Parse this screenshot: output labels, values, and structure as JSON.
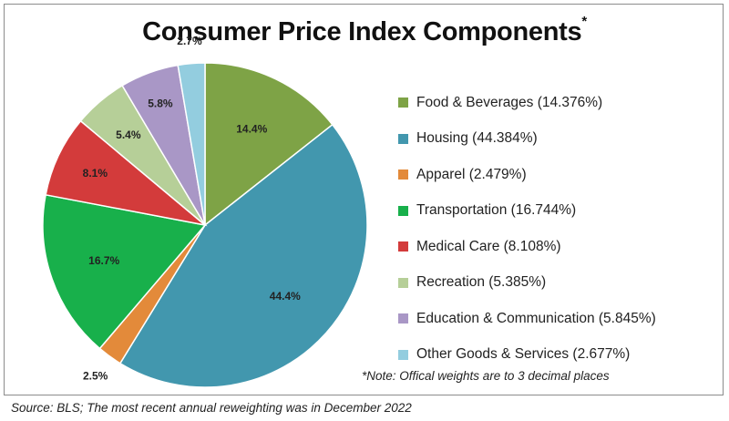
{
  "chart_data": {
    "type": "pie",
    "title": "Consumer Price Index Components",
    "title_marker": "*",
    "slices": [
      {
        "name": "Food & Beverages",
        "legend": "Food & Beverages (14.376%)",
        "value": 14.376,
        "label": "14.4%",
        "color": "#7ea346"
      },
      {
        "name": "Housing",
        "legend": "Housing (44.384%)",
        "value": 44.384,
        "label": "44.4%",
        "color": "#4297ae"
      },
      {
        "name": "Apparel",
        "legend": "Apparel (2.479%)",
        "value": 2.479,
        "label": "2.5%",
        "color": "#e38a3a"
      },
      {
        "name": "Transportation",
        "legend": "Transportation (16.744%)",
        "value": 16.744,
        "label": "16.7%",
        "color": "#18b04b"
      },
      {
        "name": "Medical Care",
        "legend": "Medical Care (8.108%)",
        "value": 8.108,
        "label": "8.1%",
        "color": "#d33b3b"
      },
      {
        "name": "Recreation",
        "legend": "Recreation (5.385%)",
        "value": 5.385,
        "label": "5.4%",
        "color": "#b6cf98"
      },
      {
        "name": "Education & Communication",
        "legend": "Education & Communication (5.845%)",
        "value": 5.845,
        "label": "5.8%",
        "color": "#a997c6"
      },
      {
        "name": "Other Goods & Services",
        "legend": "Other Goods & Services (2.677%)",
        "value": 2.677,
        "label": "2.7%",
        "color": "#93cddf"
      }
    ],
    "legend_position": "right",
    "note": "*Note: Offical weights are to 3 decimal places",
    "source": "Source: BLS; The most recent annual reweighting was in December 2022"
  }
}
